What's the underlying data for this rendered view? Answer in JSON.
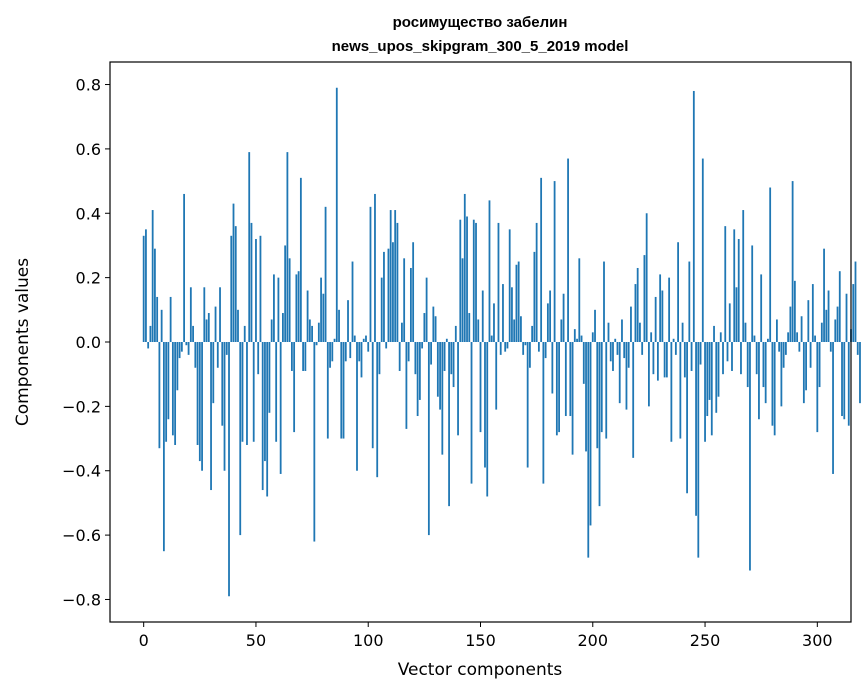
{
  "chart_data": {
    "type": "bar",
    "title_line1": "росимущество забелин",
    "title_line2": "news_upos_skipgram_300_5_2019 model",
    "xlabel": "Vector components",
    "ylabel": "Components values",
    "xlim": [
      -15,
      315
    ],
    "ylim": [
      -0.87,
      0.87
    ],
    "xticks": [
      0,
      50,
      100,
      150,
      200,
      250,
      300
    ],
    "yticks": [
      0.8,
      0.6,
      0.4,
      0.2,
      0.0,
      -0.2,
      -0.4,
      -0.6,
      -0.8
    ],
    "ytick_labels": [
      "0.8",
      "0.6",
      "0.4",
      "0.2",
      "0.0",
      "−0.2",
      "−0.4",
      "−0.6",
      "−0.8"
    ],
    "bar_color": "#1f77b4",
    "grid": false,
    "values": [
      0.33,
      0.35,
      -0.02,
      0.05,
      0.41,
      0.29,
      0.14,
      -0.33,
      0.1,
      -0.65,
      -0.31,
      -0.24,
      0.14,
      -0.29,
      -0.32,
      -0.15,
      -0.05,
      -0.03,
      0.46,
      -0.01,
      -0.04,
      0.17,
      0.05,
      -0.08,
      -0.32,
      -0.37,
      -0.4,
      0.17,
      0.07,
      0.09,
      -0.46,
      -0.19,
      0.11,
      -0.08,
      0.17,
      -0.26,
      -0.4,
      -0.04,
      -0.79,
      0.33,
      0.43,
      0.36,
      0.1,
      -0.6,
      -0.31,
      0.05,
      -0.32,
      0.59,
      0.37,
      -0.31,
      0.32,
      -0.1,
      0.33,
      -0.46,
      -0.37,
      -0.48,
      -0.22,
      0.07,
      0.21,
      -0.31,
      0.2,
      -0.41,
      0.09,
      0.3,
      0.59,
      0.26,
      -0.09,
      -0.28,
      0.21,
      0.22,
      0.51,
      -0.09,
      -0.09,
      0.16,
      0.07,
      0.05,
      -0.62,
      -0.01,
      0.06,
      0.2,
      0.15,
      0.42,
      -0.3,
      -0.08,
      -0.06,
      0.01,
      0.79,
      0.1,
      -0.3,
      -0.3,
      -0.06,
      0.13,
      -0.05,
      0.25,
      0.02,
      -0.4,
      -0.06,
      -0.11,
      0.01,
      0.02,
      -0.03,
      0.42,
      -0.33,
      0.46,
      -0.42,
      -0.1,
      0.2,
      0.28,
      -0.02,
      0.29,
      0.41,
      0.31,
      0.41,
      0.37,
      -0.09,
      0.06,
      0.26,
      -0.27,
      -0.06,
      0.23,
      0.31,
      -0.1,
      -0.23,
      -0.18,
      -0.02,
      0.09,
      0.2,
      -0.6,
      -0.07,
      0.11,
      0.08,
      -0.17,
      -0.21,
      -0.35,
      -0.09,
      0.01,
      -0.51,
      -0.1,
      -0.14,
      0.05,
      -0.29,
      0.38,
      0.26,
      0.46,
      0.39,
      0.09,
      -0.44,
      0.38,
      0.37,
      0.07,
      -0.28,
      0.16,
      -0.39,
      -0.48,
      0.44,
      0.02,
      0.12,
      -0.21,
      0.37,
      -0.04,
      0.18,
      -0.03,
      -0.02,
      0.35,
      0.17,
      0.07,
      0.24,
      0.25,
      0.08,
      -0.04,
      -0.01,
      -0.39,
      -0.08,
      0.05,
      0.28,
      0.37,
      -0.03,
      0.51,
      -0.44,
      -0.05,
      0.12,
      0.16,
      -0.16,
      0.5,
      -0.29,
      -0.28,
      0.07,
      0.15,
      -0.23,
      0.57,
      -0.23,
      -0.35,
      0.04,
      0.01,
      0.26,
      0.02,
      -0.13,
      -0.34,
      -0.67,
      -0.57,
      0.03,
      0.1,
      -0.33,
      -0.51,
      -0.28,
      0.25,
      -0.3,
      0.06,
      -0.06,
      -0.09,
      0.01,
      -0.04,
      -0.19,
      0.07,
      -0.05,
      -0.21,
      -0.08,
      0.11,
      -0.36,
      0.18,
      0.23,
      0.06,
      -0.04,
      0.27,
      0.4,
      -0.2,
      0.03,
      -0.1,
      0.14,
      -0.12,
      0.21,
      0.16,
      -0.11,
      -0.11,
      0.2,
      -0.31,
      0.01,
      -0.04,
      0.31,
      -0.3,
      0.06,
      -0.11,
      -0.47,
      0.25,
      -0.09,
      0.78,
      -0.54,
      -0.67,
      -0.07,
      0.57,
      -0.31,
      -0.23,
      -0.18,
      -0.29,
      0.05,
      -0.22,
      -0.17,
      0.03,
      -0.1,
      0.36,
      -0.06,
      0.12,
      -0.09,
      0.35,
      0.17,
      0.32,
      -0.1,
      0.41,
      0.06,
      -0.14,
      -0.71,
      0.3,
      0.02,
      -0.1,
      -0.24,
      0.21,
      -0.14,
      -0.19,
      0.01,
      0.48,
      -0.26,
      -0.29,
      0.07,
      -0.03,
      -0.2,
      -0.08,
      -0.04,
      0.03,
      0.11,
      0.5,
      0.19,
      0.03,
      -0.03,
      0.08,
      -0.19,
      -0.15,
      0.13,
      -0.08,
      0.18,
      0.02,
      -0.28,
      -0.14,
      0.06,
      0.29,
      0.1,
      0.16,
      -0.03,
      -0.41,
      0.07,
      0.11,
      0.22,
      -0.23,
      -0.24,
      0.15,
      -0.26,
      0.04,
      0.18,
      0.25,
      -0.04,
      -0.19
    ]
  }
}
